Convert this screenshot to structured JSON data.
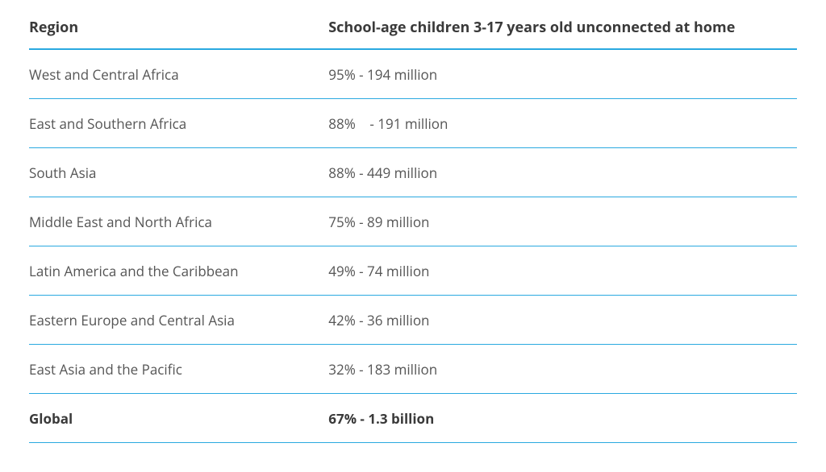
{
  "table": {
    "divider_color": "#2aa9e0",
    "columns": [
      {
        "label": "Region"
      },
      {
        "label": "School-age children 3-17 years old unconnected at home"
      }
    ],
    "rows": [
      {
        "region": "West and Central Africa",
        "value": "95% - 194 million"
      },
      {
        "region": "East and Southern Africa",
        "value": "88%    - 191 million"
      },
      {
        "region": "South Asia",
        "value": "88% - 449 million"
      },
      {
        "region": "Middle East and North Africa",
        "value": "75% - 89 million"
      },
      {
        "region": "Latin America and the Caribbean",
        "value": "49% - 74 million"
      },
      {
        "region": "Eastern Europe and Central Asia",
        "value": "42% - 36 million"
      },
      {
        "region": "East Asia and the Pacific",
        "value": "32% - 183 million"
      }
    ],
    "total": {
      "region": "Global",
      "value": "67% - 1.3 billion"
    }
  }
}
